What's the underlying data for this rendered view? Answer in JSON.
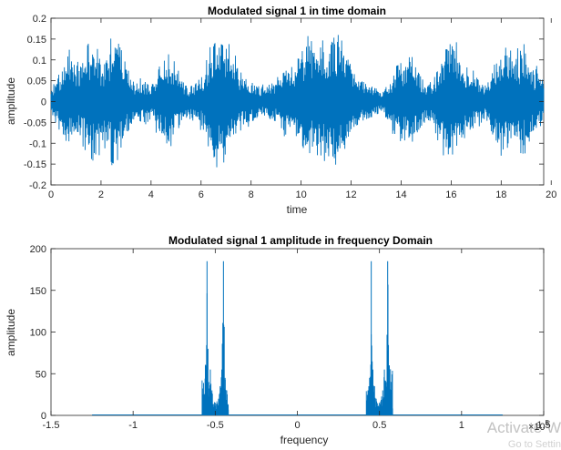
{
  "chart_data": [
    {
      "type": "line",
      "title": "Modulated signal 1 in time domain",
      "xlabel": "time",
      "ylabel": "amplitude",
      "xlim": [
        0,
        19.7
      ],
      "ylim": [
        -0.2,
        0.2
      ],
      "xticks": [
        "0",
        "2",
        "4",
        "6",
        "8",
        "10",
        "12",
        "14",
        "16",
        "18",
        "20"
      ],
      "yticks": [
        "-0.2",
        "-0.15",
        "-0.1",
        "-0.05",
        "0",
        "0.05",
        "0.1",
        "0.15",
        "0.2"
      ],
      "grid": false,
      "color": "#0072BD",
      "envelope": {
        "x": [
          0,
          0.3,
          0.6,
          0.9,
          1.2,
          1.5,
          1.8,
          2.1,
          2.4,
          2.6,
          2.8,
          3.1,
          3.4,
          3.7,
          4.0,
          4.3,
          4.6,
          4.9,
          5.2,
          5.5,
          5.8,
          6.1,
          6.4,
          6.7,
          7.0,
          7.3,
          7.6,
          7.9,
          8.2,
          8.5,
          8.8,
          9.1,
          9.4,
          9.7,
          10.0,
          10.3,
          10.6,
          10.9,
          11.2,
          11.5,
          11.7,
          12.0,
          12.3,
          12.6,
          12.9,
          13.2,
          13.5,
          13.8,
          14.1,
          14.4,
          14.7,
          15.0,
          15.3,
          15.6,
          15.9,
          16.2,
          16.5,
          16.8,
          17.1,
          17.4,
          17.7,
          18.0,
          18.3,
          18.6,
          18.9,
          19.2,
          19.5,
          19.7
        ],
        "max": [
          0.03,
          0.08,
          0.12,
          0.13,
          0.1,
          0.14,
          0.16,
          0.1,
          0.18,
          0.19,
          0.14,
          0.09,
          0.05,
          0.06,
          0.04,
          0.09,
          0.12,
          0.1,
          0.06,
          0.04,
          0.05,
          0.08,
          0.16,
          0.17,
          0.15,
          0.12,
          0.08,
          0.06,
          0.05,
          0.04,
          0.05,
          0.06,
          0.09,
          0.1,
          0.13,
          0.16,
          0.12,
          0.18,
          0.16,
          0.19,
          0.15,
          0.1,
          0.06,
          0.05,
          0.04,
          0.03,
          0.05,
          0.1,
          0.11,
          0.13,
          0.08,
          0.05,
          0.06,
          0.12,
          0.16,
          0.17,
          0.1,
          0.08,
          0.06,
          0.05,
          0.1,
          0.14,
          0.16,
          0.12,
          0.16,
          0.1,
          0.08,
          0.05
        ],
        "min": [
          -0.03,
          -0.08,
          -0.11,
          -0.12,
          -0.1,
          -0.13,
          -0.15,
          -0.1,
          -0.17,
          -0.18,
          -0.13,
          -0.08,
          -0.05,
          -0.06,
          -0.04,
          -0.09,
          -0.12,
          -0.1,
          -0.06,
          -0.04,
          -0.05,
          -0.08,
          -0.15,
          -0.16,
          -0.14,
          -0.11,
          -0.08,
          -0.06,
          -0.05,
          -0.04,
          -0.05,
          -0.06,
          -0.09,
          -0.1,
          -0.12,
          -0.15,
          -0.12,
          -0.17,
          -0.15,
          -0.19,
          -0.14,
          -0.1,
          -0.06,
          -0.05,
          -0.04,
          -0.03,
          -0.05,
          -0.1,
          -0.11,
          -0.12,
          -0.08,
          -0.05,
          -0.06,
          -0.12,
          -0.15,
          -0.16,
          -0.1,
          -0.08,
          -0.06,
          -0.05,
          -0.1,
          -0.13,
          -0.15,
          -0.12,
          -0.15,
          -0.1,
          -0.08,
          -0.05
        ]
      }
    },
    {
      "type": "line",
      "title": "Modulated signal 1 amplitude in frequency Domain",
      "xlabel": "frequency",
      "ylabel": "amplitude",
      "xlim": [
        -1.5,
        1.5
      ],
      "ylim": [
        0,
        200
      ],
      "xticks": [
        "-1.5",
        "-1",
        "-0.5",
        "0",
        "0.5",
        "1",
        "1.5"
      ],
      "yticks": [
        "0",
        "50",
        "100",
        "150",
        "200"
      ],
      "x_multiplier": "×10^5",
      "x_multiplier_base": "×10",
      "x_multiplier_exp": "5",
      "grid": false,
      "color": "#0072BD",
      "peaks": {
        "x": [
          -0.56,
          -0.55,
          -0.54,
          -0.53,
          -0.52,
          -0.5,
          -0.48,
          -0.47,
          -0.46,
          -0.45,
          -0.44,
          -0.43,
          0.43,
          0.44,
          0.45,
          0.46,
          0.47,
          0.48,
          0.5,
          0.52,
          0.53,
          0.54,
          0.55,
          0.56
        ],
        "y": [
          60,
          185,
          40,
          55,
          30,
          15,
          20,
          35,
          55,
          185,
          45,
          30,
          30,
          45,
          185,
          55,
          35,
          20,
          15,
          30,
          55,
          40,
          185,
          60
        ]
      }
    }
  ],
  "watermark": {
    "line1": "Activate W",
    "line2": "Go to Settin"
  }
}
